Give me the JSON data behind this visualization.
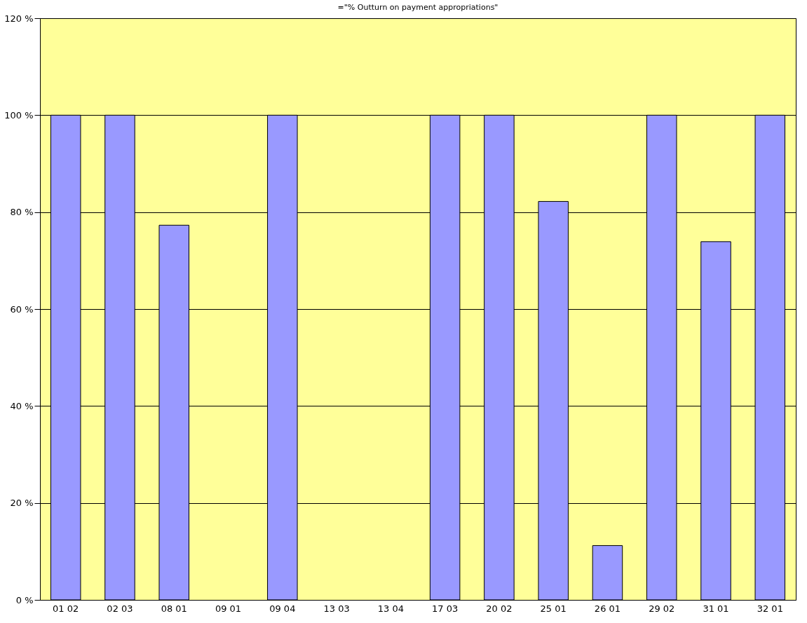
{
  "chart_data": {
    "type": "bar",
    "title": "=\"% Outturn on payment appropriations\"",
    "categories": [
      "01 02",
      "02 03",
      "08 01",
      "09 01",
      "09 04",
      "13 03",
      "13 04",
      "17 03",
      "20 02",
      "25 01",
      "26 01",
      "29 02",
      "31 01",
      "32 01"
    ],
    "values": [
      100,
      100,
      77.3,
      0,
      100,
      0,
      0,
      100,
      100,
      82.2,
      11.2,
      100,
      73.9,
      100
    ],
    "color": "#9999ff",
    "ylim": [
      0,
      120
    ],
    "yticks": [
      {
        "value": 0,
        "label": "0 %"
      },
      {
        "value": 20,
        "label": "20 %"
      },
      {
        "value": 40,
        "label": "40 %"
      },
      {
        "value": 60,
        "label": "60 %"
      },
      {
        "value": 80,
        "label": "80 %"
      },
      {
        "value": 100,
        "label": "100 %"
      },
      {
        "value": 120,
        "label": "120 %"
      }
    ],
    "grid": "y"
  }
}
